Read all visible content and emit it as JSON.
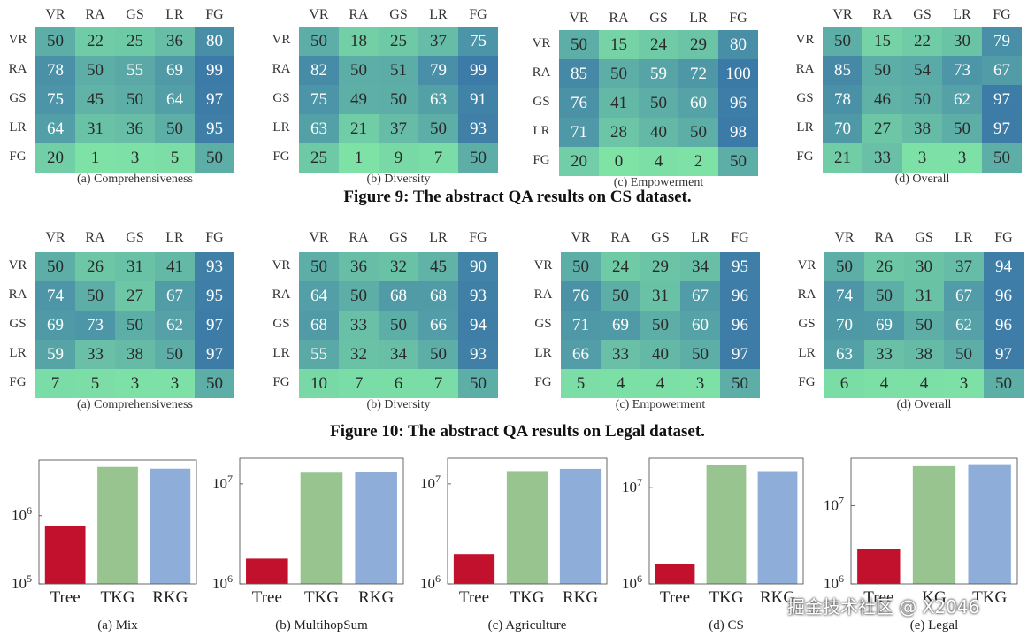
{
  "figure9_caption": "Figure 9: The abstract QA results on CS dataset.",
  "figure10_caption": "Figure 10: The abstract QA results on Legal dataset.",
  "watermark": "掘金技术社区 @ X2046",
  "colors": {
    "tree": "#c2112d",
    "tkg": "#97c48f",
    "rkg": "#8eadd8",
    "heat_low": "#7fe3a6",
    "heat_high": "#3b79a7"
  },
  "chart_data": [
    {
      "type": "heatmap",
      "group": "figure9",
      "caption": "(a)  Comprehensiveness",
      "labels": [
        "VR",
        "RA",
        "GS",
        "LR",
        "FG"
      ],
      "values": [
        [
          50,
          22,
          25,
          36,
          80
        ],
        [
          78,
          50,
          55,
          69,
          99
        ],
        [
          75,
          45,
          50,
          64,
          97
        ],
        [
          64,
          31,
          36,
          50,
          95
        ],
        [
          20,
          1,
          3,
          5,
          50
        ]
      ]
    },
    {
      "type": "heatmap",
      "group": "figure9",
      "caption": "(b)  Diversity",
      "labels": [
        "VR",
        "RA",
        "GS",
        "LR",
        "FG"
      ],
      "values": [
        [
          50,
          18,
          25,
          37,
          75
        ],
        [
          82,
          50,
          51,
          79,
          99
        ],
        [
          75,
          49,
          50,
          63,
          91
        ],
        [
          63,
          21,
          37,
          50,
          93
        ],
        [
          25,
          1,
          9,
          7,
          50
        ]
      ]
    },
    {
      "type": "heatmap",
      "group": "figure9",
      "caption": "(c)  Empowerment",
      "labels": [
        "VR",
        "RA",
        "GS",
        "LR",
        "FG"
      ],
      "values": [
        [
          50,
          15,
          24,
          29,
          80
        ],
        [
          85,
          50,
          59,
          72,
          100
        ],
        [
          76,
          41,
          50,
          60,
          96
        ],
        [
          71,
          28,
          40,
          50,
          98
        ],
        [
          20,
          0,
          4,
          2,
          50
        ]
      ]
    },
    {
      "type": "heatmap",
      "group": "figure9",
      "caption": "(d)  Overall",
      "labels": [
        "VR",
        "RA",
        "GS",
        "LR",
        "FG"
      ],
      "values": [
        [
          50,
          15,
          22,
          30,
          79
        ],
        [
          85,
          50,
          54,
          73,
          67
        ],
        [
          78,
          46,
          50,
          62,
          97
        ],
        [
          70,
          27,
          38,
          50,
          97
        ],
        [
          21,
          33,
          3,
          3,
          50
        ]
      ]
    },
    {
      "type": "heatmap",
      "group": "figure10",
      "caption": "(a)  Comprehensiveness",
      "labels": [
        "VR",
        "RA",
        "GS",
        "LR",
        "FG"
      ],
      "values": [
        [
          50,
          26,
          31,
          41,
          93
        ],
        [
          74,
          50,
          27,
          67,
          95
        ],
        [
          69,
          73,
          50,
          62,
          97
        ],
        [
          59,
          33,
          38,
          50,
          97
        ],
        [
          7,
          5,
          3,
          3,
          50
        ]
      ]
    },
    {
      "type": "heatmap",
      "group": "figure10",
      "caption": "(b)  Diversity",
      "labels": [
        "VR",
        "RA",
        "GS",
        "LR",
        "FG"
      ],
      "values": [
        [
          50,
          36,
          32,
          45,
          90
        ],
        [
          64,
          50,
          68,
          68,
          93
        ],
        [
          68,
          33,
          50,
          66,
          94
        ],
        [
          55,
          32,
          34,
          50,
          93
        ],
        [
          10,
          7,
          6,
          7,
          50
        ]
      ]
    },
    {
      "type": "heatmap",
      "group": "figure10",
      "caption": "(c)  Empowerment",
      "labels": [
        "VR",
        "RA",
        "GS",
        "LR",
        "FG"
      ],
      "values": [
        [
          50,
          24,
          29,
          34,
          95
        ],
        [
          76,
          50,
          31,
          67,
          96
        ],
        [
          71,
          69,
          50,
          60,
          96
        ],
        [
          66,
          33,
          40,
          50,
          97
        ],
        [
          5,
          4,
          4,
          3,
          50
        ]
      ]
    },
    {
      "type": "heatmap",
      "group": "figure10",
      "caption": "(d)  Overall",
      "labels": [
        "VR",
        "RA",
        "GS",
        "LR",
        "FG"
      ],
      "values": [
        [
          50,
          26,
          30,
          37,
          94
        ],
        [
          74,
          50,
          31,
          67,
          96
        ],
        [
          70,
          69,
          50,
          62,
          96
        ],
        [
          63,
          33,
          38,
          50,
          97
        ],
        [
          6,
          4,
          4,
          3,
          50
        ]
      ]
    },
    {
      "type": "bar",
      "scale": "log",
      "caption": "(a)  Mix",
      "categories": [
        "Tree",
        "TKG",
        "RKG"
      ],
      "values": [
        720000,
        5200000,
        4900000
      ],
      "ylim": [
        100000,
        6500000
      ],
      "ticks": [
        {
          "value": 100000,
          "label": "10^5"
        },
        {
          "value": 1000000,
          "label": "10^6"
        }
      ]
    },
    {
      "type": "bar",
      "scale": "log",
      "caption": "(b)  MultihopSum",
      "categories": [
        "Tree",
        "TKG",
        "RKG"
      ],
      "values": [
        1800000,
        13000000,
        13200000
      ],
      "ylim": [
        1000000,
        18000000
      ],
      "ticks": [
        {
          "value": 1000000,
          "label": "10^6"
        },
        {
          "value": 10000000,
          "label": "10^7"
        }
      ]
    },
    {
      "type": "bar",
      "scale": "log",
      "caption": "(c)  Agriculture",
      "categories": [
        "Tree",
        "TKG",
        "RKG"
      ],
      "values": [
        2000000,
        13500000,
        14200000
      ],
      "ylim": [
        1000000,
        18000000
      ],
      "ticks": [
        {
          "value": 1000000,
          "label": "10^6"
        },
        {
          "value": 10000000,
          "label": "10^7"
        }
      ]
    },
    {
      "type": "bar",
      "scale": "log",
      "caption": "(d)  CS",
      "categories": [
        "Tree",
        "TKG",
        "RKG"
      ],
      "values": [
        1600000,
        17000000,
        14800000
      ],
      "ylim": [
        1000000,
        20000000
      ],
      "ticks": [
        {
          "value": 1000000,
          "label": "10^6"
        },
        {
          "value": 10000000,
          "label": "10^7"
        }
      ]
    },
    {
      "type": "bar",
      "scale": "log",
      "caption": "(e)  Legal",
      "categories": [
        "Tree",
        "KG",
        "TKG"
      ],
      "values": [
        2800000,
        32000000,
        33000000
      ],
      "ylim": [
        1000000,
        40000000
      ],
      "ticks": [
        {
          "value": 1000000,
          "label": "10^6"
        },
        {
          "value": 10000000,
          "label": "10^7"
        }
      ]
    }
  ]
}
